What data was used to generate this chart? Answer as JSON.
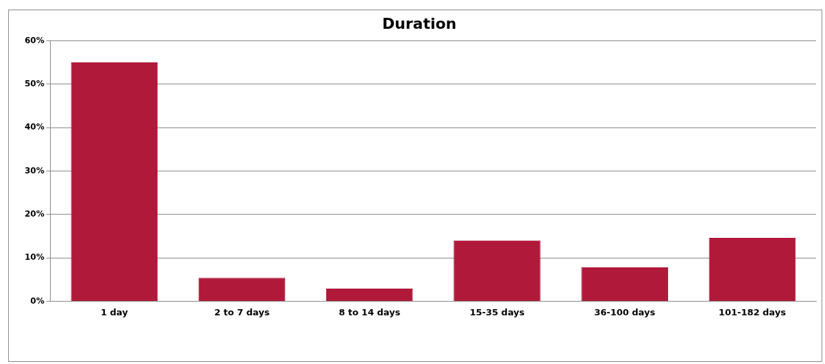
{
  "chart_data": {
    "type": "bar",
    "title": "Duration",
    "categories": [
      "1 day",
      "2 to 7 days",
      "8 to 14 days",
      "15-35 days",
      "36-100 days",
      "101-182 days"
    ],
    "values": [
      55,
      5.4,
      2.9,
      14,
      7.8,
      14.6
    ],
    "color": "#b0193a",
    "ylim": [
      0,
      60
    ],
    "yticks": [
      {
        "value": 0,
        "label": "0%"
      },
      {
        "value": 10,
        "label": "10%"
      },
      {
        "value": 20,
        "label": "20%"
      },
      {
        "value": 30,
        "label": "30%"
      },
      {
        "value": 40,
        "label": "40%"
      },
      {
        "value": 50,
        "label": "50%"
      },
      {
        "value": 60,
        "label": "60%"
      }
    ],
    "grid": "y",
    "legend": false
  }
}
